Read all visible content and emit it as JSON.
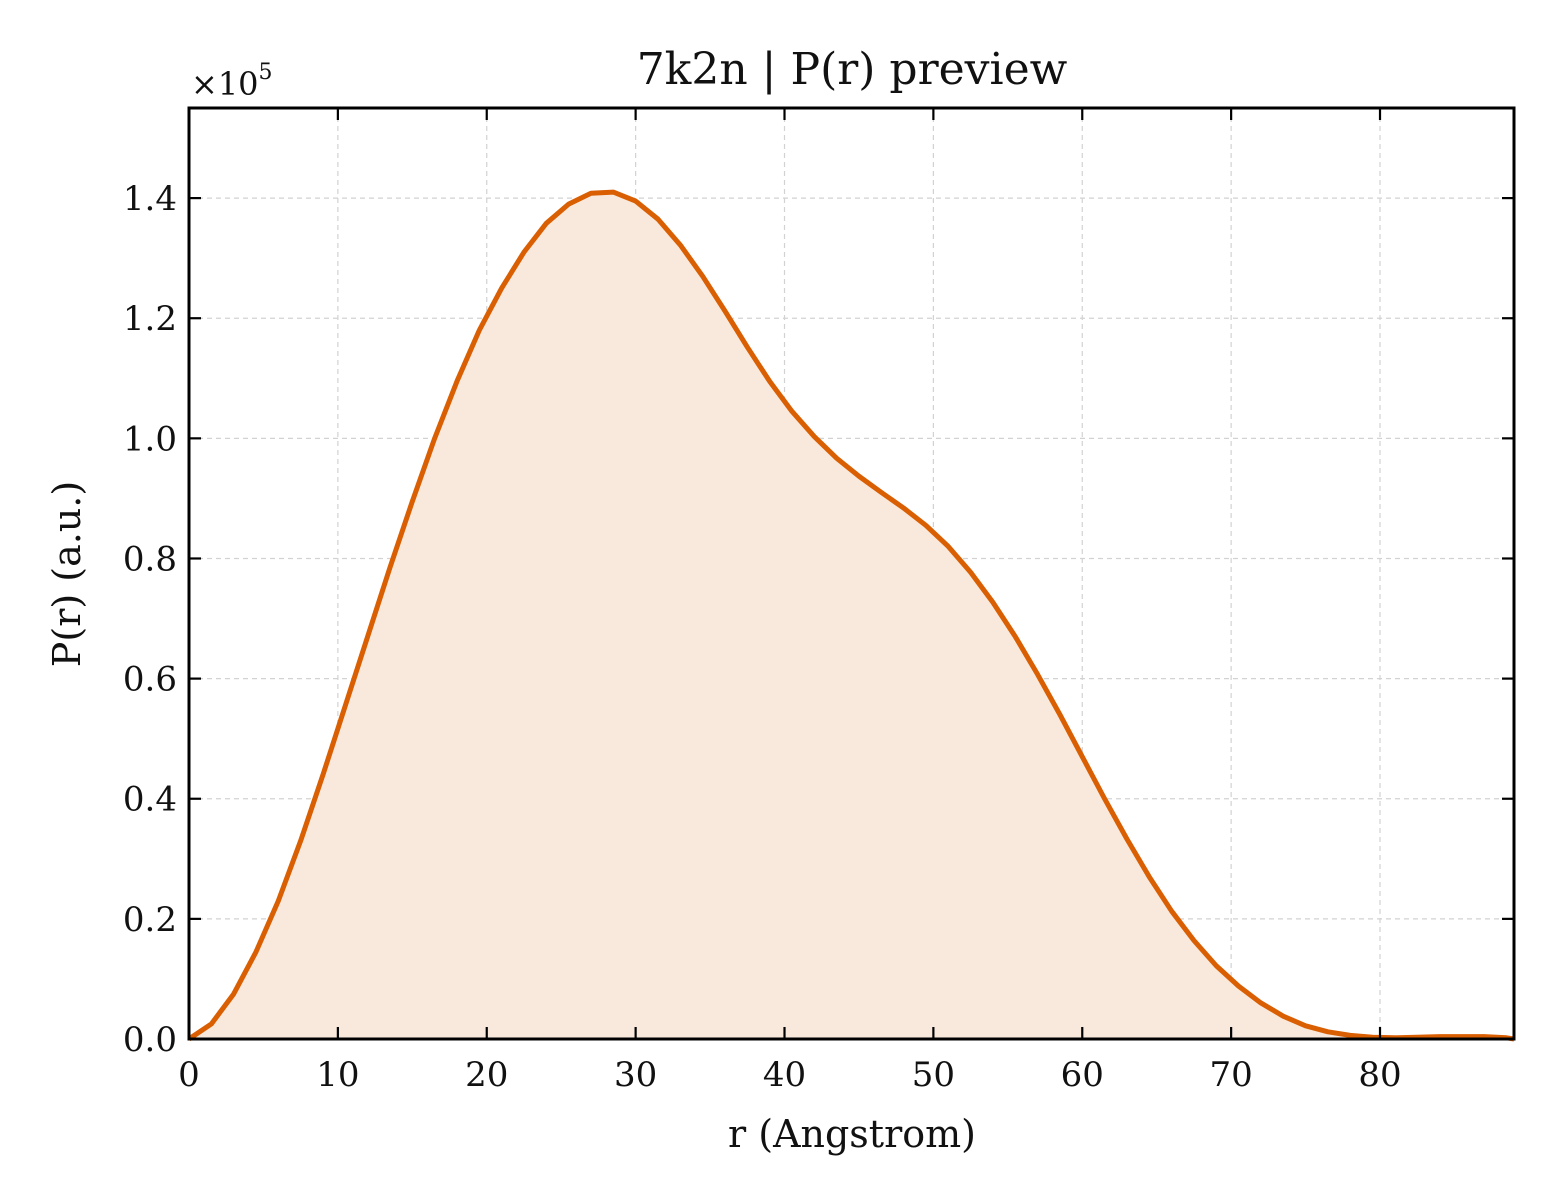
{
  "chart_data": {
    "type": "area",
    "title": "7k2n | P(r) preview",
    "xlabel": "r (Angstrom)",
    "ylabel": "P(r) (a.u.)",
    "y_scale_base": "×10",
    "y_scale_exponent": "5",
    "xlim": [
      0,
      89
    ],
    "ylim": [
      0,
      1.55
    ],
    "x_ticks": [
      0,
      10,
      20,
      30,
      40,
      50,
      60,
      70,
      80
    ],
    "x_tick_labels": [
      "0",
      "10",
      "20",
      "30",
      "40",
      "50",
      "60",
      "70",
      "80"
    ],
    "y_ticks": [
      0,
      0.2,
      0.4,
      0.6,
      0.8,
      1.0,
      1.2,
      1.4
    ],
    "y_tick_labels": [
      "0.0",
      "0.2",
      "0.4",
      "0.6",
      "0.8",
      "1.0",
      "1.2",
      "1.4"
    ],
    "grid": true,
    "line_color": "#d95f02",
    "fill_color": "#f9e9dd",
    "series": [
      {
        "x": [
          0,
          1.5,
          3,
          4.5,
          6,
          7.5,
          9,
          10.5,
          12,
          13.5,
          15,
          16.5,
          18,
          19.5,
          21,
          22.5,
          24,
          25.5,
          27,
          28.5,
          30,
          31.5,
          33,
          34.5,
          36,
          37.5,
          39,
          40.5,
          42,
          43.5,
          45,
          46.5,
          48,
          49.5,
          51,
          52.5,
          54,
          55.5,
          57,
          58.5,
          60,
          61.5,
          63,
          64.5,
          66,
          67.5,
          69,
          70.5,
          72,
          73.5,
          75,
          76.5,
          78,
          79.5,
          81,
          82.5,
          84,
          85.5,
          87,
          88.5,
          89
        ],
        "y": [
          0,
          0.025,
          0.075,
          0.145,
          0.23,
          0.33,
          0.44,
          0.555,
          0.67,
          0.785,
          0.895,
          1.0,
          1.095,
          1.18,
          1.25,
          1.31,
          1.358,
          1.39,
          1.408,
          1.41,
          1.395,
          1.365,
          1.322,
          1.27,
          1.212,
          1.152,
          1.095,
          1.045,
          1.003,
          0.967,
          0.937,
          0.91,
          0.884,
          0.855,
          0.82,
          0.777,
          0.727,
          0.67,
          0.607,
          0.54,
          0.47,
          0.4,
          0.333,
          0.27,
          0.213,
          0.164,
          0.122,
          0.088,
          0.06,
          0.038,
          0.022,
          0.012,
          0.006,
          0.003,
          0.002,
          0.003,
          0.004,
          0.004,
          0.004,
          0.002,
          0
        ]
      }
    ]
  }
}
